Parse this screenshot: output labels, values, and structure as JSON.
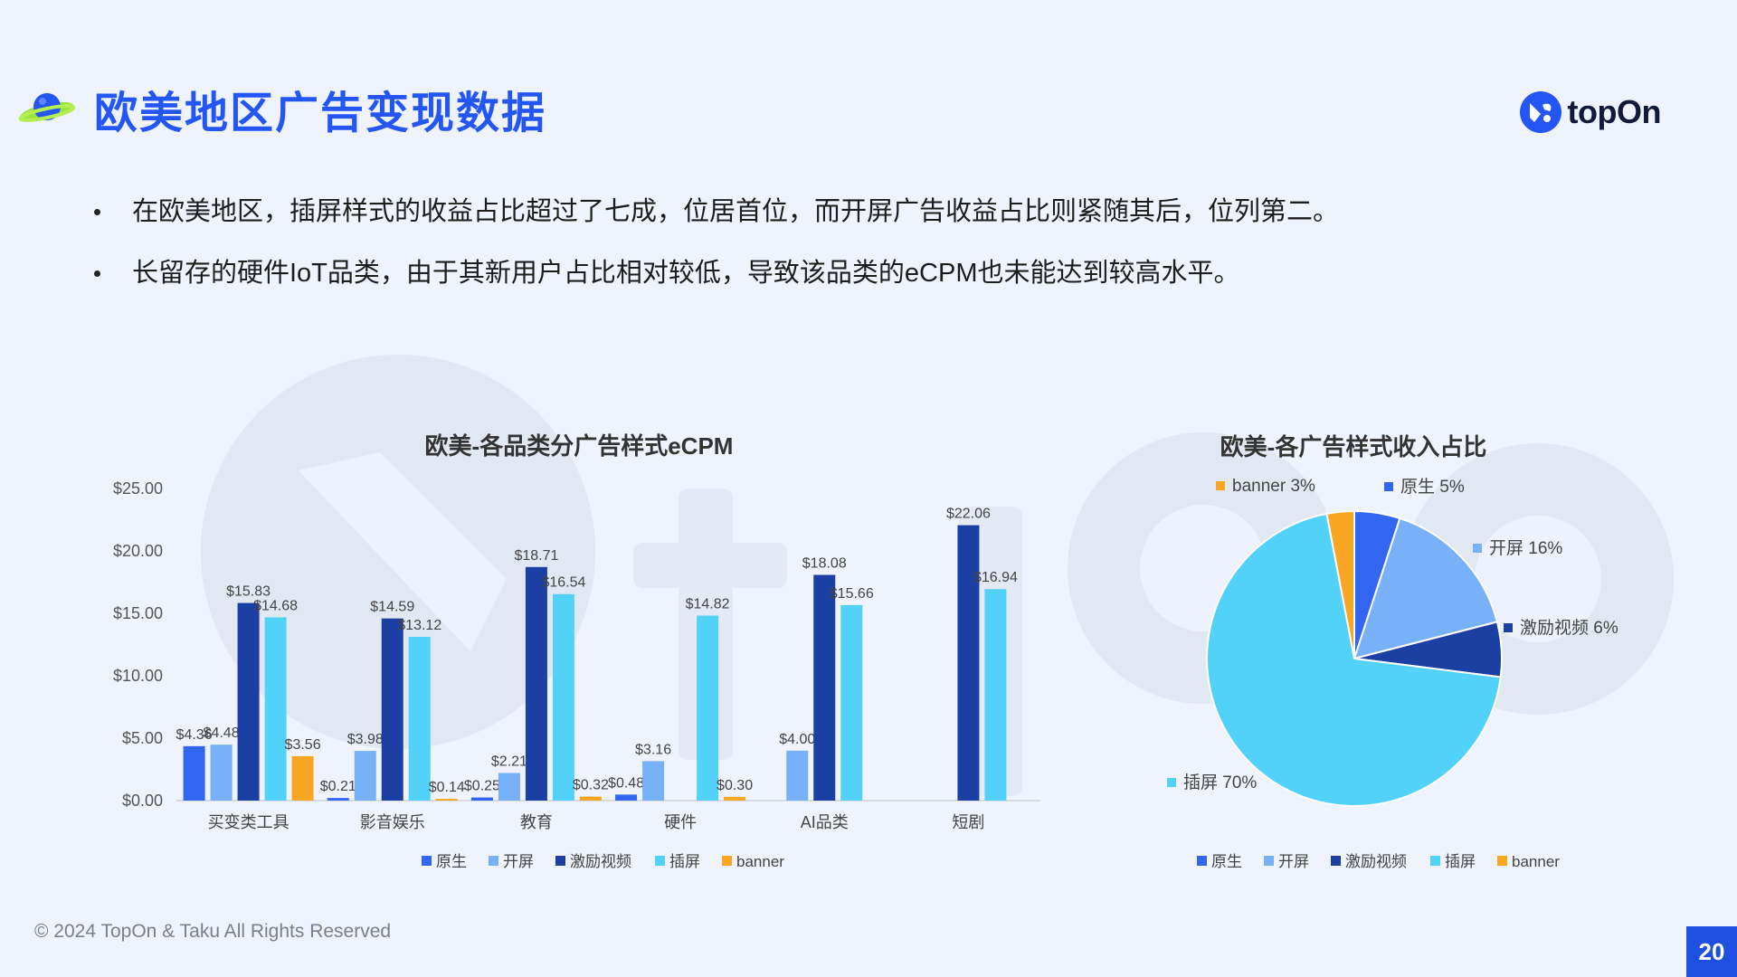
{
  "page": {
    "title": "欧美地区广告变现数据",
    "logo_text": "topOn",
    "footer": "© 2024 TopOn & Taku All Rights Reserved",
    "page_number": "20",
    "bullets": [
      "在欧美地区，插屏样式的收益占比超过了七成，位居首位，而开屏广告收益占比则紧随其后，位列第二。",
      "长留存的硬件IoT品类，由于其新用户占比相对较低，导致该品类的eCPM也未能达到较高水平。"
    ],
    "accent": "#2456f5"
  },
  "chart_data": [
    {
      "type": "bar",
      "title": "欧美-各品类分广告样式eCPM",
      "categories": [
        "买变类工具",
        "影音娱乐",
        "教育",
        "硬件",
        "AI品类",
        "短剧"
      ],
      "y_ticks": [
        "$0.00",
        "$5.00",
        "$10.00",
        "$15.00",
        "$20.00",
        "$25.00"
      ],
      "ylim": [
        0,
        25
      ],
      "grid": false,
      "legend_position": "bottom",
      "series": [
        {
          "name": "原生",
          "color": "#3366f0",
          "values": [
            4.36,
            0.21,
            0.25,
            0.48,
            null,
            null
          ],
          "labels": [
            "$4.36",
            "$0.21",
            "$0.25",
            "$0.48",
            "",
            ""
          ]
        },
        {
          "name": "开屏",
          "color": "#78b1f7",
          "values": [
            4.48,
            3.98,
            2.21,
            3.16,
            4.0,
            null
          ],
          "labels": [
            "$4.48",
            "$3.98",
            "$2.21",
            "$3.16",
            "$4.00",
            ""
          ]
        },
        {
          "name": "激励视频",
          "color": "#1c3fa3",
          "values": [
            15.83,
            14.59,
            18.71,
            null,
            18.08,
            22.06
          ],
          "labels": [
            "$15.83",
            "$14.59",
            "$18.71",
            "",
            "$18.08",
            "$22.06"
          ]
        },
        {
          "name": "插屏",
          "color": "#53d2f9",
          "values": [
            14.68,
            13.12,
            16.54,
            14.82,
            15.66,
            16.94
          ],
          "labels": [
            "$14.68",
            "$13.12",
            "$16.54",
            "$14.82",
            "$15.66",
            "$16.94"
          ]
        },
        {
          "name": "banner",
          "color": "#f9a623",
          "values": [
            3.56,
            0.14,
            0.32,
            0.3,
            null,
            null
          ],
          "labels": [
            "$3.56",
            "$0.14",
            "$0.32",
            "$0.30",
            "",
            ""
          ]
        }
      ]
    },
    {
      "type": "pie",
      "title": "欧美-各广告样式收入占比",
      "legend_position": "bottom",
      "slices": [
        {
          "name": "原生",
          "value": 5,
          "label": "原生 5%",
          "color": "#3366f0"
        },
        {
          "name": "开屏",
          "value": 16,
          "label": "开屏 16%",
          "color": "#78b1f7"
        },
        {
          "name": "激励视频",
          "value": 6,
          "label": "激励视频 6%",
          "color": "#1c3fa3"
        },
        {
          "name": "插屏",
          "value": 70,
          "label": "插屏 70%",
          "color": "#53d2f9"
        },
        {
          "name": "banner",
          "value": 3,
          "label": "banner 3%",
          "color": "#f9a623"
        }
      ]
    }
  ]
}
